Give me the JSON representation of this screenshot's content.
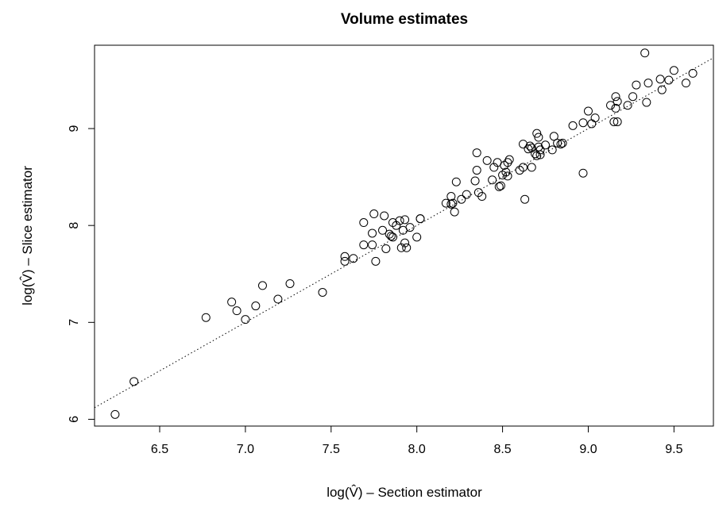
{
  "chart_data": {
    "type": "scatter",
    "title": "Volume estimates",
    "xlabel": "log(V̂) – Section estimator",
    "ylabel": "log(V̂) – Slice estimator",
    "xlim": [
      6.12,
      9.73
    ],
    "ylim": [
      5.93,
      9.86
    ],
    "x_ticks": [
      "6.5",
      "7.0",
      "7.5",
      "8.0",
      "8.5",
      "9.0",
      "9.5"
    ],
    "y_ticks": [
      "6",
      "7",
      "8",
      "9"
    ],
    "grid": false,
    "reference_line": {
      "style": "dotted",
      "intercept": 0,
      "slope": 1
    },
    "points": [
      {
        "x": 6.24,
        "y": 6.05
      },
      {
        "x": 6.35,
        "y": 6.39
      },
      {
        "x": 6.77,
        "y": 7.05
      },
      {
        "x": 6.92,
        "y": 7.21
      },
      {
        "x": 6.95,
        "y": 7.12
      },
      {
        "x": 7.0,
        "y": 7.03
      },
      {
        "x": 7.06,
        "y": 7.17
      },
      {
        "x": 7.1,
        "y": 7.38
      },
      {
        "x": 7.19,
        "y": 7.24
      },
      {
        "x": 7.26,
        "y": 7.4
      },
      {
        "x": 7.45,
        "y": 7.31
      },
      {
        "x": 7.58,
        "y": 7.63
      },
      {
        "x": 7.58,
        "y": 7.68
      },
      {
        "x": 7.63,
        "y": 7.66
      },
      {
        "x": 7.69,
        "y": 7.8
      },
      {
        "x": 7.69,
        "y": 8.03
      },
      {
        "x": 7.74,
        "y": 7.8
      },
      {
        "x": 7.74,
        "y": 7.92
      },
      {
        "x": 7.75,
        "y": 8.12
      },
      {
        "x": 7.76,
        "y": 7.63
      },
      {
        "x": 7.8,
        "y": 7.95
      },
      {
        "x": 7.81,
        "y": 8.1
      },
      {
        "x": 7.82,
        "y": 7.76
      },
      {
        "x": 7.84,
        "y": 7.91
      },
      {
        "x": 7.85,
        "y": 7.89
      },
      {
        "x": 7.86,
        "y": 7.88
      },
      {
        "x": 7.86,
        "y": 8.03
      },
      {
        "x": 7.88,
        "y": 8.0
      },
      {
        "x": 7.9,
        "y": 8.05
      },
      {
        "x": 7.91,
        "y": 7.77
      },
      {
        "x": 7.92,
        "y": 7.95
      },
      {
        "x": 7.93,
        "y": 8.06
      },
      {
        "x": 7.93,
        "y": 7.82
      },
      {
        "x": 7.94,
        "y": 7.77
      },
      {
        "x": 7.96,
        "y": 7.98
      },
      {
        "x": 8.0,
        "y": 7.88
      },
      {
        "x": 8.02,
        "y": 8.07
      },
      {
        "x": 8.02,
        "y": 8.07
      },
      {
        "x": 8.17,
        "y": 8.23
      },
      {
        "x": 8.2,
        "y": 8.22
      },
      {
        "x": 8.2,
        "y": 8.3
      },
      {
        "x": 8.21,
        "y": 8.23
      },
      {
        "x": 8.22,
        "y": 8.14
      },
      {
        "x": 8.23,
        "y": 8.45
      },
      {
        "x": 8.26,
        "y": 8.27
      },
      {
        "x": 8.29,
        "y": 8.32
      },
      {
        "x": 8.34,
        "y": 8.46
      },
      {
        "x": 8.35,
        "y": 8.57
      },
      {
        "x": 8.35,
        "y": 8.75
      },
      {
        "x": 8.36,
        "y": 8.34
      },
      {
        "x": 8.38,
        "y": 8.3
      },
      {
        "x": 8.41,
        "y": 8.67
      },
      {
        "x": 8.44,
        "y": 8.47
      },
      {
        "x": 8.45,
        "y": 8.6
      },
      {
        "x": 8.47,
        "y": 8.65
      },
      {
        "x": 8.48,
        "y": 8.4
      },
      {
        "x": 8.49,
        "y": 8.41
      },
      {
        "x": 8.5,
        "y": 8.52
      },
      {
        "x": 8.51,
        "y": 8.62
      },
      {
        "x": 8.52,
        "y": 8.55
      },
      {
        "x": 8.53,
        "y": 8.51
      },
      {
        "x": 8.53,
        "y": 8.65
      },
      {
        "x": 8.54,
        "y": 8.68
      },
      {
        "x": 8.6,
        "y": 8.57
      },
      {
        "x": 8.62,
        "y": 8.6
      },
      {
        "x": 8.62,
        "y": 8.84
      },
      {
        "x": 8.63,
        "y": 8.27
      },
      {
        "x": 8.65,
        "y": 8.79
      },
      {
        "x": 8.66,
        "y": 8.82
      },
      {
        "x": 8.67,
        "y": 8.6
      },
      {
        "x": 8.67,
        "y": 8.8
      },
      {
        "x": 8.69,
        "y": 8.74
      },
      {
        "x": 8.7,
        "y": 8.72
      },
      {
        "x": 8.7,
        "y": 8.95
      },
      {
        "x": 8.71,
        "y": 8.81
      },
      {
        "x": 8.71,
        "y": 8.91
      },
      {
        "x": 8.72,
        "y": 8.78
      },
      {
        "x": 8.72,
        "y": 8.73
      },
      {
        "x": 8.75,
        "y": 8.83
      },
      {
        "x": 8.79,
        "y": 8.78
      },
      {
        "x": 8.8,
        "y": 8.92
      },
      {
        "x": 8.82,
        "y": 8.85
      },
      {
        "x": 8.84,
        "y": 8.84
      },
      {
        "x": 8.85,
        "y": 8.85
      },
      {
        "x": 8.91,
        "y": 9.03
      },
      {
        "x": 8.97,
        "y": 9.06
      },
      {
        "x": 8.97,
        "y": 8.54
      },
      {
        "x": 9.0,
        "y": 9.18
      },
      {
        "x": 9.02,
        "y": 9.05
      },
      {
        "x": 9.04,
        "y": 9.11
      },
      {
        "x": 9.13,
        "y": 9.24
      },
      {
        "x": 9.15,
        "y": 9.07
      },
      {
        "x": 9.16,
        "y": 9.33
      },
      {
        "x": 9.16,
        "y": 9.21
      },
      {
        "x": 9.17,
        "y": 9.07
      },
      {
        "x": 9.17,
        "y": 9.28
      },
      {
        "x": 9.23,
        "y": 9.24
      },
      {
        "x": 9.26,
        "y": 9.33
      },
      {
        "x": 9.28,
        "y": 9.45
      },
      {
        "x": 9.33,
        "y": 9.78
      },
      {
        "x": 9.34,
        "y": 9.27
      },
      {
        "x": 9.35,
        "y": 9.47
      },
      {
        "x": 9.42,
        "y": 9.51
      },
      {
        "x": 9.43,
        "y": 9.4
      },
      {
        "x": 9.47,
        "y": 9.5
      },
      {
        "x": 9.5,
        "y": 9.6
      },
      {
        "x": 9.57,
        "y": 9.47
      },
      {
        "x": 9.61,
        "y": 9.57
      }
    ]
  }
}
